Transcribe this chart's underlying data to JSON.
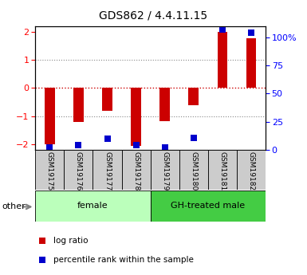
{
  "title": "GDS862 / 4.4.11.15",
  "samples": [
    "GSM19175",
    "GSM19176",
    "GSM19177",
    "GSM19178",
    "GSM19179",
    "GSM19180",
    "GSM19181",
    "GSM19182"
  ],
  "log_ratios": [
    -2.0,
    -1.22,
    -0.82,
    -2.05,
    -1.18,
    -0.62,
    2.0,
    1.78
  ],
  "percentile_ranks": [
    2,
    4,
    9,
    4,
    2,
    10,
    97,
    95
  ],
  "ylim_left": [
    -2.2,
    2.2
  ],
  "ylim_right": [
    0,
    110
  ],
  "left_yticks": [
    -2,
    -1,
    0,
    1,
    2
  ],
  "right_yticks": [
    0,
    25,
    50,
    75,
    100
  ],
  "right_yticklabels": [
    "0",
    "25",
    "50",
    "75",
    "100%"
  ],
  "groups": [
    {
      "label": "female",
      "start": 0,
      "end": 3,
      "color": "#bbffbb"
    },
    {
      "label": "GH-treated male",
      "start": 4,
      "end": 7,
      "color": "#44cc44"
    }
  ],
  "bar_color": "#cc0000",
  "dot_color": "#0000cc",
  "bar_width": 0.35,
  "dot_size": 40,
  "hline_y0_color": "#cc0000",
  "hline_dotted_color": "#555555",
  "other_label": "other",
  "legend_log_ratio": "log ratio",
  "legend_percentile": "percentile rank within the sample",
  "bg_color": "#ffffff",
  "plot_bg_color": "#ffffff",
  "grid_color": "#888888",
  "sample_box_color": "#cccccc"
}
